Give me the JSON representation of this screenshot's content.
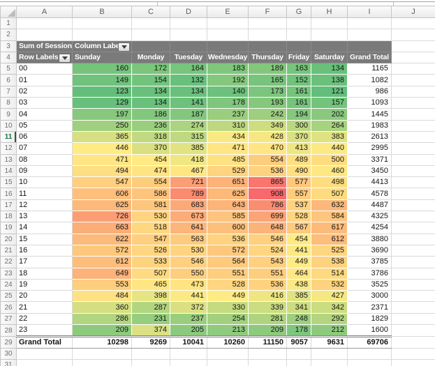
{
  "sheet": {
    "column_letters": [
      "A",
      "B",
      "C",
      "D",
      "E",
      "F",
      "G",
      "H",
      "I",
      "J"
    ],
    "row_numbers": [
      "1",
      "2",
      "3",
      "4",
      "5",
      "6",
      "7",
      "8",
      "9",
      "10",
      "11",
      "12",
      "13",
      "14",
      "15",
      "16",
      "17",
      "18",
      "19",
      "20",
      "21",
      "22",
      "23",
      "24",
      "25",
      "26",
      "27",
      "28",
      "29",
      "30",
      "31"
    ],
    "active_row": 11
  },
  "pivot": {
    "summary_label": "Sum of Sessions",
    "column_labels_label": "Column Labels",
    "row_labels_label": "Row Labels",
    "day_headers": [
      "Sunday",
      "Monday",
      "Tuesday",
      "Wednesday",
      "Thursday",
      "Friday",
      "Saturday"
    ],
    "grand_total_column_header": "Grand Total",
    "grand_total_row_label": "Grand Total",
    "hours": [
      "00",
      "01",
      "02",
      "03",
      "04",
      "05",
      "06",
      "07",
      "08",
      "09",
      "10",
      "11",
      "12",
      "13",
      "14",
      "15",
      "16",
      "17",
      "18",
      "19",
      "20",
      "21",
      "22",
      "23"
    ],
    "values": [
      [
        160,
        172,
        164,
        183,
        189,
        163,
        134
      ],
      [
        149,
        154,
        132,
        192,
        165,
        152,
        138
      ],
      [
        123,
        134,
        134,
        140,
        173,
        161,
        121
      ],
      [
        129,
        134,
        141,
        178,
        193,
        161,
        157
      ],
      [
        197,
        186,
        187,
        237,
        242,
        194,
        202
      ],
      [
        250,
        236,
        274,
        310,
        349,
        300,
        264
      ],
      [
        365,
        318,
        315,
        434,
        428,
        370,
        383
      ],
      [
        446,
        370,
        385,
        471,
        470,
        413,
        440
      ],
      [
        471,
        454,
        418,
        485,
        554,
        489,
        500
      ],
      [
        494,
        474,
        467,
        529,
        536,
        490,
        460
      ],
      [
        547,
        554,
        721,
        651,
        865,
        577,
        498
      ],
      [
        606,
        586,
        789,
        625,
        908,
        557,
        507
      ],
      [
        625,
        581,
        683,
        643,
        786,
        537,
        632
      ],
      [
        726,
        530,
        673,
        585,
        699,
        528,
        584
      ],
      [
        663,
        518,
        641,
        600,
        648,
        567,
        617
      ],
      [
        622,
        547,
        563,
        536,
        546,
        454,
        612
      ],
      [
        572,
        526,
        530,
        572,
        524,
        441,
        525
      ],
      [
        612,
        533,
        546,
        564,
        543,
        449,
        538
      ],
      [
        649,
        507,
        550,
        551,
        551,
        464,
        514
      ],
      [
        553,
        465,
        473,
        528,
        536,
        438,
        532
      ],
      [
        484,
        398,
        441,
        449,
        416,
        385,
        427
      ],
      [
        360,
        287,
        372,
        330,
        339,
        341,
        342
      ],
      [
        286,
        231,
        237,
        254,
        281,
        248,
        292
      ],
      [
        209,
        374,
        205,
        213,
        209,
        178,
        212
      ]
    ],
    "row_totals": [
      1165,
      1082,
      986,
      1093,
      1445,
      1983,
      2613,
      2995,
      3371,
      3450,
      4413,
      4578,
      4487,
      4325,
      4254,
      3880,
      3690,
      3785,
      3786,
      3525,
      3000,
      2371,
      1829,
      1600
    ],
    "col_totals": [
      10298,
      9269,
      10041,
      10260,
      11150,
      9057,
      9631
    ],
    "grand_total": 69706,
    "color_scale": {
      "min_color": "#63BE7B",
      "mid_color": "#FFEB84",
      "max_color": "#F8696B"
    },
    "header_bg": "#7A7A7A",
    "header_text_color": "#FFFFFF"
  },
  "chart_data": {
    "type": "heatmap",
    "title": "Sum of Sessions",
    "x_categories": [
      "Sunday",
      "Monday",
      "Tuesday",
      "Wednesday",
      "Thursday",
      "Friday",
      "Saturday"
    ],
    "y_categories": [
      "00",
      "01",
      "02",
      "03",
      "04",
      "05",
      "06",
      "07",
      "08",
      "09",
      "10",
      "11",
      "12",
      "13",
      "14",
      "15",
      "16",
      "17",
      "18",
      "19",
      "20",
      "21",
      "22",
      "23"
    ],
    "values_note": "same matrix as pivot.values; low=green #63BE7B, mid=yellow #FFEB84, high=red #F8696B"
  }
}
